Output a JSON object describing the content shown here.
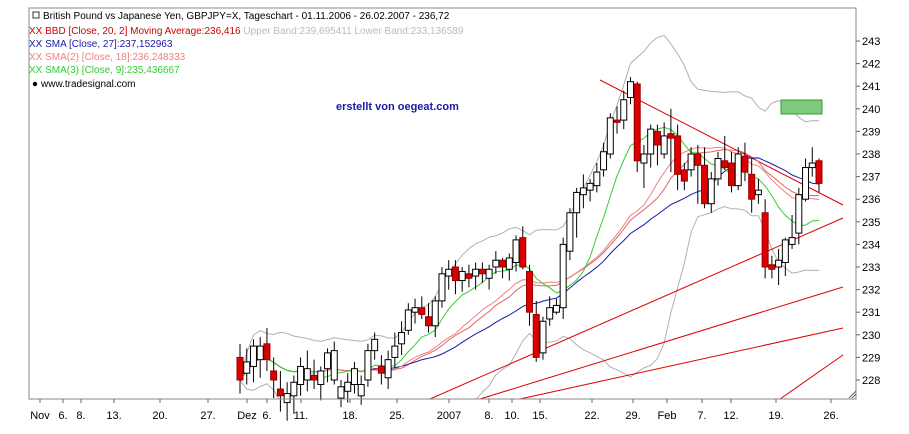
{
  "chart_data": {
    "type": "candlestick",
    "legend_lines": [
      {
        "text": "British Pound vs Japanese Yen, GBPJPY=X, Tageschart - 01.11.2006 - 26.02.2007 - 236,72",
        "color": "#000000"
      },
      {
        "text": "XX BBD [Close, 20, 2] Moving Average:236,416",
        "color": "#cc0000",
        "tail": " Upper Band:239,695411 Lower Band:233,136589",
        "tail_color": "#bbbbbb"
      },
      {
        "text": "XX SMA [Close, 27]:237,152963",
        "color": "#1a1aa6"
      },
      {
        "text": "XX SMA(2) [Close, 18]:236,248333",
        "color": "#f08080"
      },
      {
        "text": "XX SMA(3) [Close, 9]:235,436667",
        "color": "#33cc33"
      },
      {
        "text": "www.tradesignal.com",
        "color": "#000000"
      }
    ],
    "annotation": "erstellt von oegeat.com",
    "y_ticks": [
      228,
      229,
      230,
      231,
      232,
      233,
      234,
      235,
      236,
      237,
      238,
      239,
      240,
      241,
      242,
      243
    ],
    "x_ticks": [
      "Nov",
      "6.",
      "8.",
      "13.",
      "20.",
      "27.",
      "Dez",
      "6.",
      "11.",
      "18.",
      "25.",
      "2007",
      "8.",
      "10.",
      "15.",
      "22.",
      "29.",
      "Feb",
      "7.",
      "12.",
      "19.",
      "26."
    ],
    "ylim": [
      227,
      244.3
    ],
    "colors": {
      "up_candle": "#ffffff",
      "down_candle": "#dd0000",
      "bollinger": "#b0b0b0",
      "sma27": "#1a1aa6",
      "sma18": "#f08080",
      "sma9": "#33cc33",
      "trendlines": "#dd0000",
      "box_fill": "#7fc97f"
    },
    "candles": [
      {
        "o": 229.0,
        "h": 229.6,
        "l": 227.4,
        "c": 228.0
      },
      {
        "o": 228.3,
        "h": 229.4,
        "l": 227.8,
        "c": 228.8
      },
      {
        "o": 228.6,
        "h": 229.8,
        "l": 227.9,
        "c": 229.5
      },
      {
        "o": 228.9,
        "h": 229.9,
        "l": 228.1,
        "c": 229.5
      },
      {
        "o": 229.6,
        "h": 230.3,
        "l": 228.4,
        "c": 228.9
      },
      {
        "o": 228.4,
        "h": 229.0,
        "l": 227.2,
        "c": 228.0
      },
      {
        "o": 227.6,
        "h": 228.4,
        "l": 226.6,
        "c": 227.3
      },
      {
        "o": 227.0,
        "h": 227.9,
        "l": 226.2,
        "c": 227.4
      },
      {
        "o": 227.3,
        "h": 228.2,
        "l": 226.5,
        "c": 227.9
      },
      {
        "o": 227.8,
        "h": 229.0,
        "l": 227.3,
        "c": 228.6
      },
      {
        "o": 228.0,
        "h": 229.3,
        "l": 227.5,
        "c": 228.5
      },
      {
        "o": 228.2,
        "h": 228.9,
        "l": 227.6,
        "c": 228.0
      },
      {
        "o": 227.8,
        "h": 228.6,
        "l": 227.1,
        "c": 228.4
      },
      {
        "o": 228.5,
        "h": 229.4,
        "l": 227.9,
        "c": 229.2
      },
      {
        "o": 228.0,
        "h": 229.7,
        "l": 227.8,
        "c": 229.3
      },
      {
        "o": 227.2,
        "h": 228.0,
        "l": 226.8,
        "c": 227.7
      },
      {
        "o": 227.5,
        "h": 228.3,
        "l": 227.0,
        "c": 227.9
      },
      {
        "o": 227.8,
        "h": 228.8,
        "l": 227.4,
        "c": 228.5
      },
      {
        "o": 227.3,
        "h": 228.2,
        "l": 226.9,
        "c": 227.8
      },
      {
        "o": 228.0,
        "h": 229.6,
        "l": 227.7,
        "c": 229.3
      },
      {
        "o": 229.3,
        "h": 230.1,
        "l": 228.9,
        "c": 229.8
      },
      {
        "o": 228.6,
        "h": 229.1,
        "l": 227.8,
        "c": 228.3
      },
      {
        "o": 228.1,
        "h": 229.3,
        "l": 227.6,
        "c": 228.9
      },
      {
        "o": 229.0,
        "h": 230.1,
        "l": 228.5,
        "c": 229.5
      },
      {
        "o": 229.6,
        "h": 230.6,
        "l": 229.1,
        "c": 230.1
      },
      {
        "o": 230.2,
        "h": 231.4,
        "l": 230.0,
        "c": 231.1
      },
      {
        "o": 231.0,
        "h": 231.6,
        "l": 230.5,
        "c": 231.2
      },
      {
        "o": 231.2,
        "h": 231.7,
        "l": 230.7,
        "c": 230.9
      },
      {
        "o": 230.8,
        "h": 231.4,
        "l": 230.1,
        "c": 230.4
      },
      {
        "o": 230.4,
        "h": 231.7,
        "l": 229.9,
        "c": 231.5
      },
      {
        "o": 231.5,
        "h": 233.0,
        "l": 231.2,
        "c": 232.7
      },
      {
        "o": 232.6,
        "h": 233.3,
        "l": 232.0,
        "c": 232.9
      },
      {
        "o": 233.0,
        "h": 233.3,
        "l": 231.8,
        "c": 232.4
      },
      {
        "o": 232.4,
        "h": 233.0,
        "l": 231.9,
        "c": 232.8
      },
      {
        "o": 232.7,
        "h": 233.1,
        "l": 232.1,
        "c": 232.5
      },
      {
        "o": 232.6,
        "h": 233.2,
        "l": 232.0,
        "c": 232.9
      },
      {
        "o": 232.9,
        "h": 233.2,
        "l": 232.3,
        "c": 232.7
      },
      {
        "o": 232.5,
        "h": 233.1,
        "l": 232.0,
        "c": 232.9
      },
      {
        "o": 233.0,
        "h": 233.7,
        "l": 232.7,
        "c": 233.3
      },
      {
        "o": 233.3,
        "h": 233.4,
        "l": 232.5,
        "c": 233.0
      },
      {
        "o": 232.9,
        "h": 233.6,
        "l": 232.4,
        "c": 233.4
      },
      {
        "o": 233.2,
        "h": 234.4,
        "l": 232.8,
        "c": 234.2
      },
      {
        "o": 234.3,
        "h": 234.8,
        "l": 232.9,
        "c": 233.0
      },
      {
        "o": 232.8,
        "h": 233.1,
        "l": 230.4,
        "c": 231.0
      },
      {
        "o": 230.9,
        "h": 231.5,
        "l": 228.8,
        "c": 229.0
      },
      {
        "o": 229.2,
        "h": 230.8,
        "l": 228.9,
        "c": 230.6
      },
      {
        "o": 230.7,
        "h": 231.7,
        "l": 230.4,
        "c": 231.2
      },
      {
        "o": 231.0,
        "h": 231.6,
        "l": 230.9,
        "c": 231.3
      },
      {
        "o": 231.2,
        "h": 234.3,
        "l": 230.7,
        "c": 234.0
      },
      {
        "o": 233.7,
        "h": 235.6,
        "l": 233.3,
        "c": 235.4
      },
      {
        "o": 235.4,
        "h": 236.5,
        "l": 234.3,
        "c": 236.3
      },
      {
        "o": 236.2,
        "h": 237.1,
        "l": 235.6,
        "c": 236.5
      },
      {
        "o": 236.4,
        "h": 236.9,
        "l": 235.9,
        "c": 236.7
      },
      {
        "o": 236.6,
        "h": 237.6,
        "l": 236.3,
        "c": 237.2
      },
      {
        "o": 237.3,
        "h": 238.5,
        "l": 237.0,
        "c": 238.1
      },
      {
        "o": 238.0,
        "h": 239.8,
        "l": 237.8,
        "c": 239.6
      },
      {
        "o": 239.5,
        "h": 240.1,
        "l": 238.9,
        "c": 239.4
      },
      {
        "o": 239.5,
        "h": 240.8,
        "l": 239.1,
        "c": 240.4
      },
      {
        "o": 240.5,
        "h": 241.4,
        "l": 240.2,
        "c": 241.2
      },
      {
        "o": 241.1,
        "h": 241.2,
        "l": 237.2,
        "c": 237.7
      },
      {
        "o": 237.6,
        "h": 238.4,
        "l": 236.5,
        "c": 238.0
      },
      {
        "o": 238.0,
        "h": 239.3,
        "l": 237.4,
        "c": 239.1
      },
      {
        "o": 239.0,
        "h": 239.3,
        "l": 237.5,
        "c": 238.4
      },
      {
        "o": 238.0,
        "h": 239.4,
        "l": 237.8,
        "c": 238.8
      },
      {
        "o": 238.9,
        "h": 240.0,
        "l": 237.2,
        "c": 238.7
      },
      {
        "o": 238.8,
        "h": 239.3,
        "l": 236.4,
        "c": 237.1
      },
      {
        "o": 237.3,
        "h": 237.6,
        "l": 236.4,
        "c": 236.8
      },
      {
        "o": 237.3,
        "h": 238.3,
        "l": 237.0,
        "c": 238.0
      },
      {
        "o": 238.0,
        "h": 238.4,
        "l": 235.8,
        "c": 237.5
      },
      {
        "o": 237.5,
        "h": 238.3,
        "l": 235.6,
        "c": 235.8
      },
      {
        "o": 235.8,
        "h": 237.2,
        "l": 235.4,
        "c": 236.9
      },
      {
        "o": 236.9,
        "h": 238.1,
        "l": 236.6,
        "c": 237.8
      },
      {
        "o": 237.7,
        "h": 238.8,
        "l": 237.3,
        "c": 237.4
      },
      {
        "o": 237.6,
        "h": 238.1,
        "l": 236.3,
        "c": 236.6
      },
      {
        "o": 236.6,
        "h": 238.3,
        "l": 236.4,
        "c": 238.0
      },
      {
        "o": 237.9,
        "h": 238.5,
        "l": 236.8,
        "c": 237.2
      },
      {
        "o": 237.1,
        "h": 237.8,
        "l": 235.4,
        "c": 236.0
      },
      {
        "o": 236.2,
        "h": 236.9,
        "l": 235.8,
        "c": 236.4
      },
      {
        "o": 235.4,
        "h": 236.0,
        "l": 232.5,
        "c": 233.0
      },
      {
        "o": 233.1,
        "h": 233.5,
        "l": 232.5,
        "c": 232.9
      },
      {
        "o": 233.0,
        "h": 233.8,
        "l": 232.2,
        "c": 233.3
      },
      {
        "o": 233.2,
        "h": 234.3,
        "l": 232.6,
        "c": 234.2
      },
      {
        "o": 234.0,
        "h": 235.3,
        "l": 233.8,
        "c": 234.3
      },
      {
        "o": 234.5,
        "h": 236.5,
        "l": 234.0,
        "c": 236.2
      },
      {
        "o": 236.0,
        "h": 237.8,
        "l": 235.9,
        "c": 237.4
      },
      {
        "o": 237.4,
        "h": 238.3,
        "l": 237.0,
        "c": 237.6
      },
      {
        "o": 237.7,
        "h": 237.8,
        "l": 236.3,
        "c": 236.7
      }
    ]
  }
}
